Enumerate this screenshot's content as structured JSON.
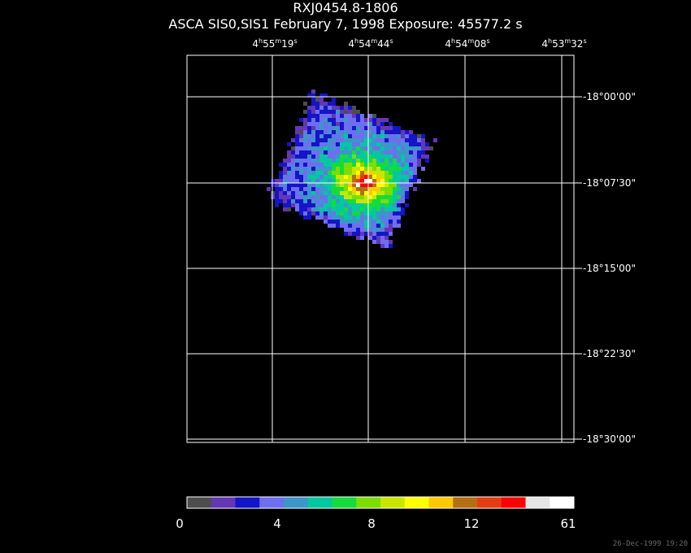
{
  "header": {
    "title": "RXJ0454.8-1806",
    "subtitle": "ASCA SIS0,SIS1 February 7, 1998 Exposure: 45577.2 s"
  },
  "ra_labels": [
    {
      "h": "4",
      "m": "55",
      "s": "19"
    },
    {
      "h": "4",
      "m": "54",
      "s": "44"
    },
    {
      "h": "4",
      "m": "54",
      "s": "08"
    },
    {
      "h": "4",
      "m": "53",
      "s": "32"
    }
  ],
  "ra_units": {
    "h": "h",
    "m": "m",
    "s": "s"
  },
  "dec_labels": [
    "-18°00'00\"",
    "-18°07'30\"",
    "-18°15'00\"",
    "-18°22'30\"",
    "-18°30'00\""
  ],
  "colorbar": {
    "colors": [
      "#4d4d4d",
      "#6437b4",
      "#1414c8",
      "#6e6ef0",
      "#3c96c8",
      "#00c8a0",
      "#14dc3c",
      "#7ddc00",
      "#c8e600",
      "#ffff00",
      "#ffc800",
      "#b46e14",
      "#e63c14",
      "#ff0000",
      "#e6e6e6",
      "#ffffff"
    ],
    "tick_labels": [
      "0",
      "4",
      "8",
      "12",
      "61"
    ]
  },
  "footer": {
    "timestamp": "26-Dec-1999 19:20"
  }
}
